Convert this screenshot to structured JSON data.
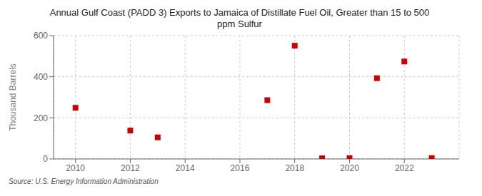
{
  "chart_data": {
    "type": "scatter",
    "title": "Annual Gulf Coast (PADD 3) Exports to Jamaica of Distillate Fuel Oil, Greater than 15 to 500\nppm Sulfur",
    "ylabel": "Thousand Barrels",
    "annotations": [
      "Source: U.S. Energy Information Administration"
    ],
    "x": [
      2010,
      2012,
      2013,
      2017,
      2018,
      2019,
      2020,
      2021,
      2022,
      2023
    ],
    "values": [
      249,
      138,
      105,
      286,
      551,
      3,
      4,
      393,
      474,
      4
    ],
    "color": "#cc0000",
    "marker": "square",
    "xlim": [
      2009.2,
      2024.0
    ],
    "ylim": [
      0,
      600
    ],
    "xticks": [
      2010,
      2012,
      2014,
      2016,
      2018,
      2020,
      2022
    ],
    "yticks": [
      0,
      200,
      400,
      600
    ],
    "grid": true
  }
}
